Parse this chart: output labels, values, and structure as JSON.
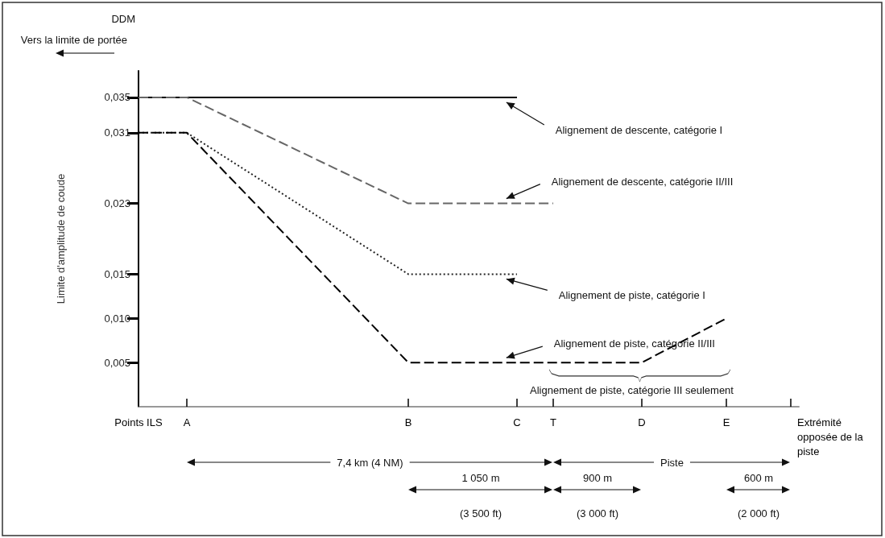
{
  "chart_data": {
    "type": "line",
    "ylabel": "Limite d'amplitude de coude",
    "categories": [
      "Points ILS",
      "A",
      "B",
      "C",
      "T",
      "D",
      "E",
      "Extrémité opposée de la piste"
    ],
    "ylim": [
      0,
      0.038
    ],
    "yticks": [
      {
        "value": 0.005,
        "label": "0,005"
      },
      {
        "value": 0.01,
        "label": "0,010"
      },
      {
        "value": 0.015,
        "label": "0,015"
      },
      {
        "value": 0.023,
        "label": "0,023"
      },
      {
        "value": 0.031,
        "label": "0,031"
      },
      {
        "value": 0.035,
        "label": "0,035"
      }
    ],
    "grid": false,
    "marker": "none",
    "series": [
      {
        "color": "#000000",
        "line_style": "solid",
        "values": [
          0.035,
          0.035,
          0.035,
          0.035,
          null,
          null,
          null,
          null
        ]
      },
      {
        "color": "#666666",
        "line_style": "dashed",
        "values": [
          0.035,
          0.035,
          0.023,
          0.023,
          0.023,
          null,
          null,
          null
        ]
      },
      {
        "color": "#222222",
        "line_style": "dotted",
        "values": [
          0.031,
          0.031,
          0.015,
          0.015,
          null,
          null,
          null,
          null
        ]
      },
      {
        "color": "#000000",
        "line_style": "dashed",
        "values": [
          0.031,
          0.031,
          0.005,
          0.005,
          0.005,
          0.005,
          0.01,
          null
        ]
      }
    ],
    "annotations": [
      "Alignement de descente, catégorie I",
      "Alignement de descente, catégorie II/III",
      "Alignement de piste, catégorie I",
      "Alignement de piste, catégorie II/III",
      "Alignement de piste, catégorie III seulement",
      "DDM",
      "Vers la limite de portée",
      "7,4 km (4 NM)",
      "Piste",
      "1 050 m",
      "(3 500 ft)",
      "900 m",
      "(3 000 ft)",
      "600 m",
      "(2 000 ft)"
    ]
  }
}
